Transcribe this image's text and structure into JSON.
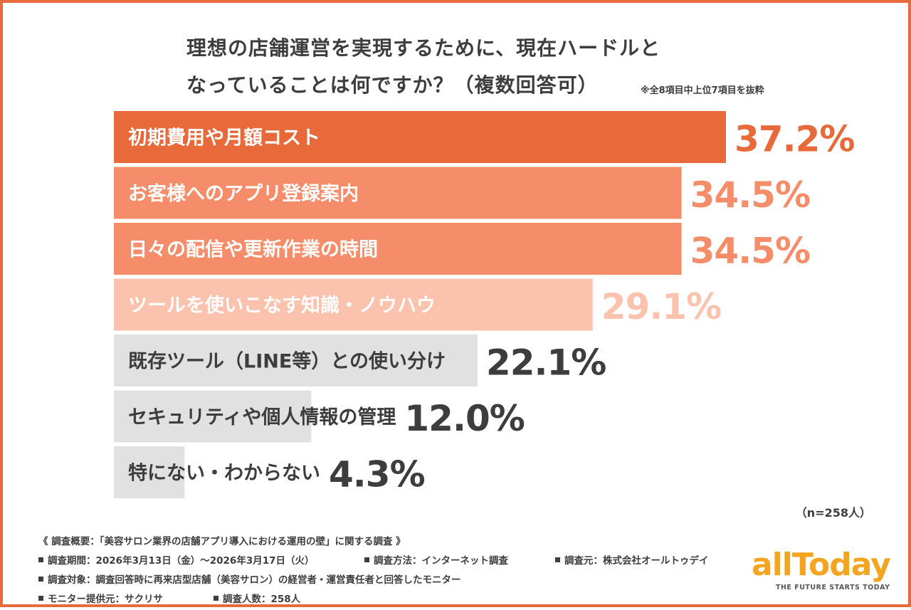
{
  "title_line1": "理想の店舗運営を実現するために、現在ハードルと",
  "title_line2": "なっていることは何ですか？（複数回答可）",
  "note": "※全8項目中上位7項目を抜粋",
  "sample": "（n=258人）",
  "chart_data": {
    "type": "bar",
    "orientation": "horizontal",
    "title": "理想の店舗運営を実現するために、現在ハードルとなっていることは何ですか？（複数回答可）",
    "categories": [
      "初期費用や月額コスト",
      "お客様へのアプリ登録案内",
      "日々の配信や更新作業の時間",
      "ツールを使いこなす知識・ノウハウ",
      "既存ツール（LINE等）との使い分け",
      "セキュリティや個人情報の管理",
      "特にない・わからない"
    ],
    "values": [
      37.2,
      34.5,
      34.5,
      29.1,
      22.1,
      12.0,
      4.3
    ],
    "value_labels": [
      "37.2%",
      "34.5%",
      "34.5%",
      "29.1%",
      "22.1%",
      "12.0%",
      "4.3%"
    ],
    "xlim": [
      0,
      37.2
    ],
    "bar_colors": [
      "#e8693a",
      "#f68d6a",
      "#f68d6a",
      "#fbc2ad",
      "#e1e1e1",
      "#e1e1e1",
      "#e1e1e1"
    ],
    "label_colors": [
      "#ffffff",
      "#ffffff",
      "#ffffff",
      "#ffffff",
      "#3d3d3d",
      "#3d3d3d",
      "#3d3d3d"
    ],
    "value_colors": [
      "#e8693a",
      "#f68d6a",
      "#f68d6a",
      "#fbc2ad",
      "#3d3d3d",
      "#3d3d3d",
      "#3d3d3d"
    ],
    "grid": false,
    "legend": "none"
  },
  "footer": {
    "overview": "《 調査概要：「美容サロン業界の店舗アプリ導入における運用の壁」に関する調査 》",
    "period": "調査期間：2026年3月13日（金）〜2026年3月17日（火）",
    "method": "調査方法：インターネット調査",
    "source": "調査元：株式会社オールトゥデイ",
    "target": "調査対象：調査回答時に再来店型店舗（美容サロン）の経営者・運営責任者と回答したモニター",
    "provider": "モニター提供元：サクリサ",
    "count": "調査人数：258人"
  },
  "logo": {
    "word": "allToday",
    "tagline": "THE FUTURE STARTS TODAY"
  }
}
